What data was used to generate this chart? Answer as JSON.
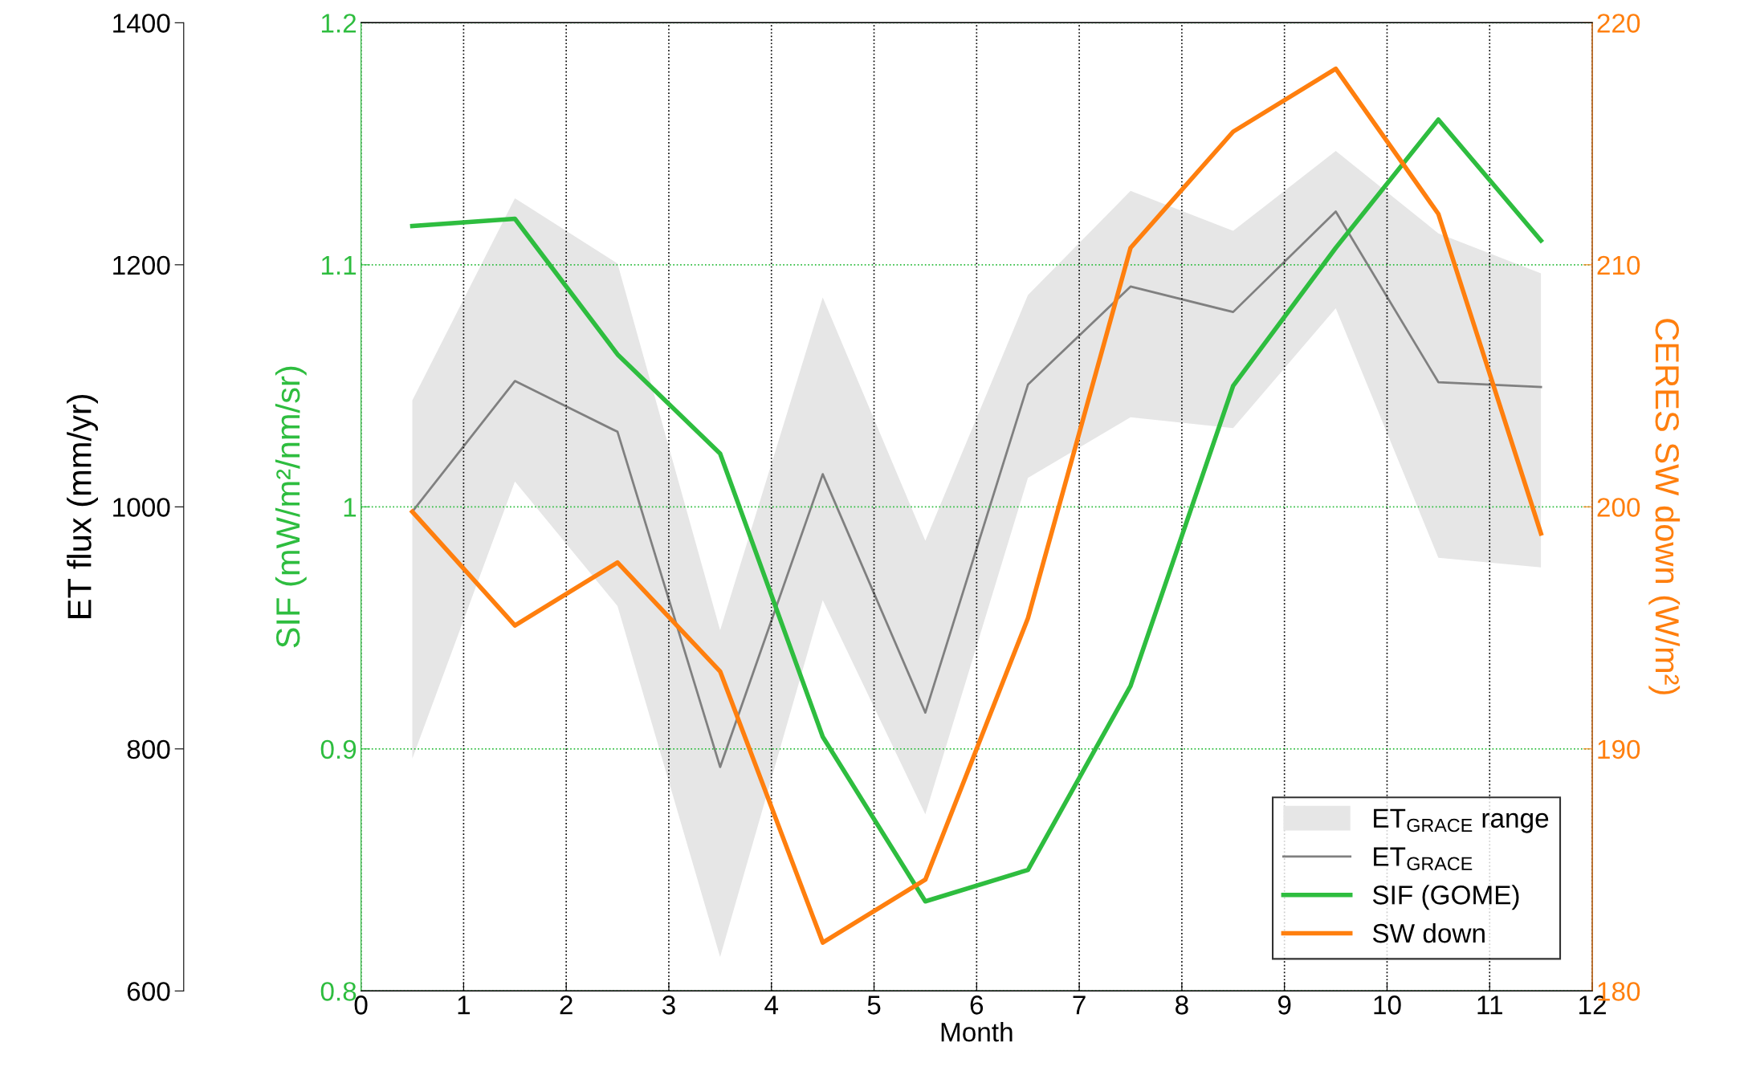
{
  "chart_data": {
    "type": "line",
    "xlabel": "Month",
    "ylabel": "SIF (mW/m²/nm/sr)",
    "y2label": "CERES SW down (W/m²)",
    "y3label": "ET flux (mm/yr)",
    "xlim": [
      0,
      12
    ],
    "xticks": [
      0,
      1,
      2,
      3,
      4,
      5,
      6,
      7,
      8,
      9,
      10,
      11,
      12
    ],
    "ylim": [
      0.8,
      1.2
    ],
    "yticks": [
      0.8,
      0.9,
      1,
      1.1,
      1.2
    ],
    "y2lim": [
      180,
      220
    ],
    "y2ticks": [
      180,
      190,
      200,
      210,
      220
    ],
    "y3lim": [
      600,
      1400
    ],
    "y3ticks": [
      600,
      800,
      1000,
      1200,
      1400
    ],
    "x": [
      0.5,
      1.5,
      2.5,
      3.5,
      4.5,
      5.5,
      6.5,
      7.5,
      8.5,
      9.5,
      10.5,
      11.5
    ],
    "grid": true,
    "legend": "bottom right",
    "annotations": [
      "ET$_{GRACE}$ range"
    ],
    "series": [
      {
        "type": "line",
        "name": "ET$_{GRACE}$",
        "color": "#808080",
        "axis": "y3",
        "values": [
          996,
          1104,
          1062,
          785,
          1027,
          830,
          1101,
          1182,
          1161,
          1244,
          1103,
          1099
        ],
        "lower": [
          792,
          1021,
          918,
          628,
          923,
          746,
          1024,
          1074,
          1065,
          1164,
          958,
          950
        ],
        "upper": [
          1088,
          1255,
          1201,
          898,
          1173,
          972,
          1175,
          1261,
          1228,
          1294,
          1226,
          1193
        ]
      },
      {
        "type": "line",
        "name": "SIF (GOME)",
        "color": "#2ebd3f",
        "axis": "y",
        "values": [
          1.116,
          1.119,
          1.063,
          1.022,
          0.905,
          0.837,
          0.85,
          0.926,
          1.05,
          1.107,
          1.16,
          1.11
        ]
      },
      {
        "type": "line",
        "name": "SW down",
        "color": "#ff7f0e",
        "axis": "y2",
        "values": [
          199.8,
          195.1,
          197.7,
          193.2,
          182.0,
          184.6,
          195.4,
          210.7,
          215.5,
          218.1,
          212.1,
          198.9
        ]
      }
    ]
  }
}
